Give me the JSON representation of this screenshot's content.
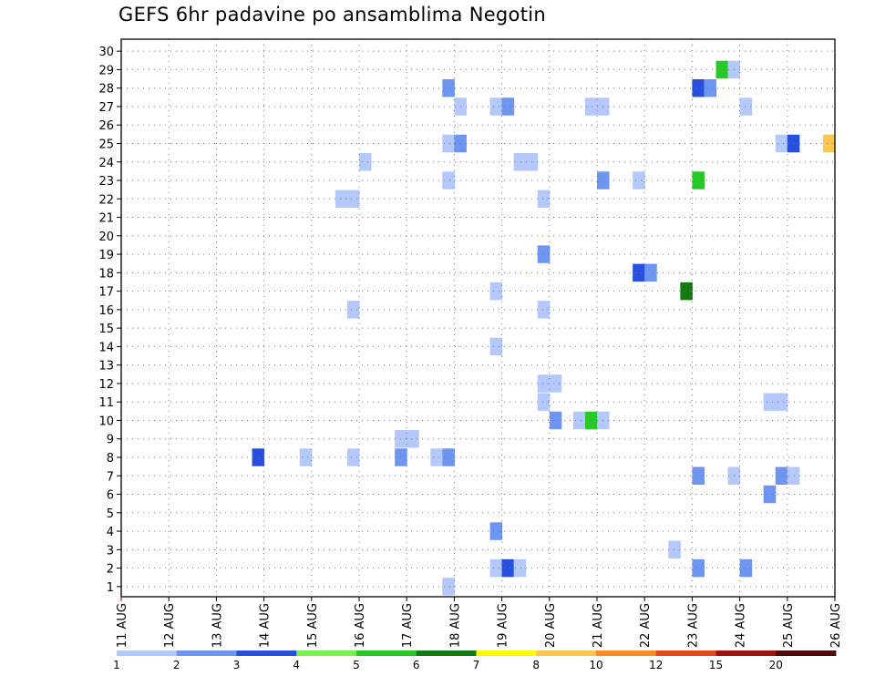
{
  "title": "GEFS 6hr padavine po ansamblima Negotin",
  "chart_data": {
    "type": "heatmap",
    "title": "GEFS 6hr padavine po ansamblima Negotin",
    "x_ticks": [
      "11 AUG",
      "12 AUG",
      "13 AUG",
      "14 AUG",
      "15 AUG",
      "16 AUG",
      "17 AUG",
      "18 AUG",
      "19 AUG",
      "20 AUG",
      "21 AUG",
      "22 AUG",
      "23 AUG",
      "24 AUG",
      "25 AUG",
      "26 AUG"
    ],
    "y_ticks": [
      "1",
      "2",
      "3",
      "4",
      "5",
      "6",
      "7",
      "8",
      "9",
      "10",
      "11",
      "12",
      "13",
      "14",
      "15",
      "16",
      "17",
      "18",
      "19",
      "20",
      "21",
      "22",
      "23",
      "24",
      "25",
      "26",
      "27",
      "28",
      "29",
      "30"
    ],
    "xlim": [
      "11 AUG 00Z",
      "26 AUG 00Z"
    ],
    "ylim": [
      1,
      30
    ],
    "grid": true,
    "colorbar": {
      "labels": [
        "1",
        "2",
        "3",
        "4",
        "5",
        "6",
        "7",
        "8",
        "10",
        "12",
        "15",
        "20"
      ],
      "colors": [
        "#b4c8fa",
        "#6e96f0",
        "#2850dc",
        "#78f050",
        "#28c828",
        "#147814",
        "#fafa00",
        "#fac850",
        "#fa8c28",
        "#e6461e",
        "#a01414",
        "#500a0a"
      ]
    },
    "cells": [
      {
        "member": 29,
        "time": "23 AUG 12Z",
        "value": 5
      },
      {
        "member": 29,
        "time": "23 AUG 18Z",
        "value": 1
      },
      {
        "member": 28,
        "time": "17 AUG 18Z",
        "value": 2
      },
      {
        "member": 28,
        "time": "23 AUG 00Z",
        "value": 3
      },
      {
        "member": 28,
        "time": "23 AUG 06Z",
        "value": 2
      },
      {
        "member": 27,
        "time": "18 AUG 00Z",
        "value": 1
      },
      {
        "member": 27,
        "time": "18 AUG 18Z",
        "value": 1
      },
      {
        "member": 27,
        "time": "19 AUG 00Z",
        "value": 2
      },
      {
        "member": 27,
        "time": "20 AUG 18Z",
        "value": 1
      },
      {
        "member": 27,
        "time": "21 AUG 00Z",
        "value": 1
      },
      {
        "member": 27,
        "time": "24 AUG 00Z",
        "value": 1
      },
      {
        "member": 25,
        "time": "17 AUG 18Z",
        "value": 1
      },
      {
        "member": 25,
        "time": "18 AUG 00Z",
        "value": 2
      },
      {
        "member": 25,
        "time": "24 AUG 18Z",
        "value": 1
      },
      {
        "member": 25,
        "time": "25 AUG 00Z",
        "value": 3
      },
      {
        "member": 25,
        "time": "25 AUG 18Z",
        "value": 8
      },
      {
        "member": 24,
        "time": "16 AUG 00Z",
        "value": 1
      },
      {
        "member": 24,
        "time": "19 AUG 06Z",
        "value": 1
      },
      {
        "member": 24,
        "time": "19 AUG 12Z",
        "value": 1
      },
      {
        "member": 23,
        "time": "17 AUG 18Z",
        "value": 1
      },
      {
        "member": 23,
        "time": "21 AUG 00Z",
        "value": 2
      },
      {
        "member": 23,
        "time": "21 AUG 18Z",
        "value": 1
      },
      {
        "member": 23,
        "time": "23 AUG 00Z",
        "value": 5
      },
      {
        "member": 22,
        "time": "15 AUG 12Z",
        "value": 1
      },
      {
        "member": 22,
        "time": "15 AUG 18Z",
        "value": 1
      },
      {
        "member": 22,
        "time": "19 AUG 18Z",
        "value": 1
      },
      {
        "member": 19,
        "time": "19 AUG 18Z",
        "value": 2
      },
      {
        "member": 18,
        "time": "21 AUG 18Z",
        "value": 3
      },
      {
        "member": 18,
        "time": "22 AUG 00Z",
        "value": 2
      },
      {
        "member": 17,
        "time": "18 AUG 18Z",
        "value": 1
      },
      {
        "member": 17,
        "time": "22 AUG 18Z",
        "value": 6
      },
      {
        "member": 16,
        "time": "15 AUG 18Z",
        "value": 1
      },
      {
        "member": 16,
        "time": "19 AUG 18Z",
        "value": 1
      },
      {
        "member": 14,
        "time": "18 AUG 18Z",
        "value": 1
      },
      {
        "member": 12,
        "time": "19 AUG 18Z",
        "value": 1
      },
      {
        "member": 12,
        "time": "20 AUG 00Z",
        "value": 1
      },
      {
        "member": 11,
        "time": "19 AUG 18Z",
        "value": 1
      },
      {
        "member": 11,
        "time": "24 AUG 12Z",
        "value": 1
      },
      {
        "member": 11,
        "time": "24 AUG 18Z",
        "value": 1
      },
      {
        "member": 10,
        "time": "20 AUG 00Z",
        "value": 2
      },
      {
        "member": 10,
        "time": "20 AUG 12Z",
        "value": 1
      },
      {
        "member": 10,
        "time": "20 AUG 18Z",
        "value": 5
      },
      {
        "member": 10,
        "time": "21 AUG 00Z",
        "value": 1
      },
      {
        "member": 9,
        "time": "16 AUG 18Z",
        "value": 1
      },
      {
        "member": 9,
        "time": "17 AUG 00Z",
        "value": 1
      },
      {
        "member": 8,
        "time": "13 AUG 18Z",
        "value": 3
      },
      {
        "member": 8,
        "time": "14 AUG 18Z",
        "value": 1
      },
      {
        "member": 8,
        "time": "15 AUG 18Z",
        "value": 1
      },
      {
        "member": 8,
        "time": "16 AUG 18Z",
        "value": 2
      },
      {
        "member": 8,
        "time": "17 AUG 12Z",
        "value": 1
      },
      {
        "member": 8,
        "time": "17 AUG 18Z",
        "value": 2
      },
      {
        "member": 7,
        "time": "23 AUG 00Z",
        "value": 2
      },
      {
        "member": 7,
        "time": "23 AUG 18Z",
        "value": 1
      },
      {
        "member": 7,
        "time": "24 AUG 18Z",
        "value": 2
      },
      {
        "member": 7,
        "time": "25 AUG 00Z",
        "value": 1
      },
      {
        "member": 6,
        "time": "24 AUG 12Z",
        "value": 2
      },
      {
        "member": 4,
        "time": "18 AUG 18Z",
        "value": 2
      },
      {
        "member": 3,
        "time": "22 AUG 12Z",
        "value": 1
      },
      {
        "member": 2,
        "time": "18 AUG 18Z",
        "value": 1
      },
      {
        "member": 2,
        "time": "19 AUG 00Z",
        "value": 3
      },
      {
        "member": 2,
        "time": "19 AUG 06Z",
        "value": 1
      },
      {
        "member": 2,
        "time": "23 AUG 00Z",
        "value": 2
      },
      {
        "member": 2,
        "time": "24 AUG 00Z",
        "value": 2
      },
      {
        "member": 1,
        "time": "17 AUG 18Z",
        "value": 1
      }
    ]
  }
}
